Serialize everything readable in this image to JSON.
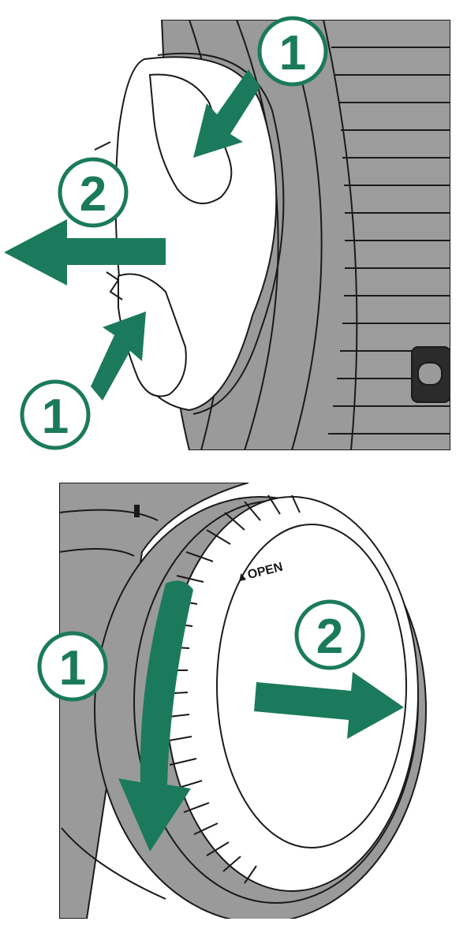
{
  "colors": {
    "accent": "#1b7a5c",
    "badge_fill": "#ffffff",
    "lens_gray": "#9a9a9a",
    "lens_dark": "#2b2b2b",
    "line": "#1a1a1a"
  },
  "front_cap": {
    "step_pinch_top": "1",
    "step_pull": "2",
    "step_pinch_bottom": "1"
  },
  "rear_cap": {
    "open_marker": "▲OPEN",
    "step_rotate": "1",
    "step_pull": "2"
  }
}
